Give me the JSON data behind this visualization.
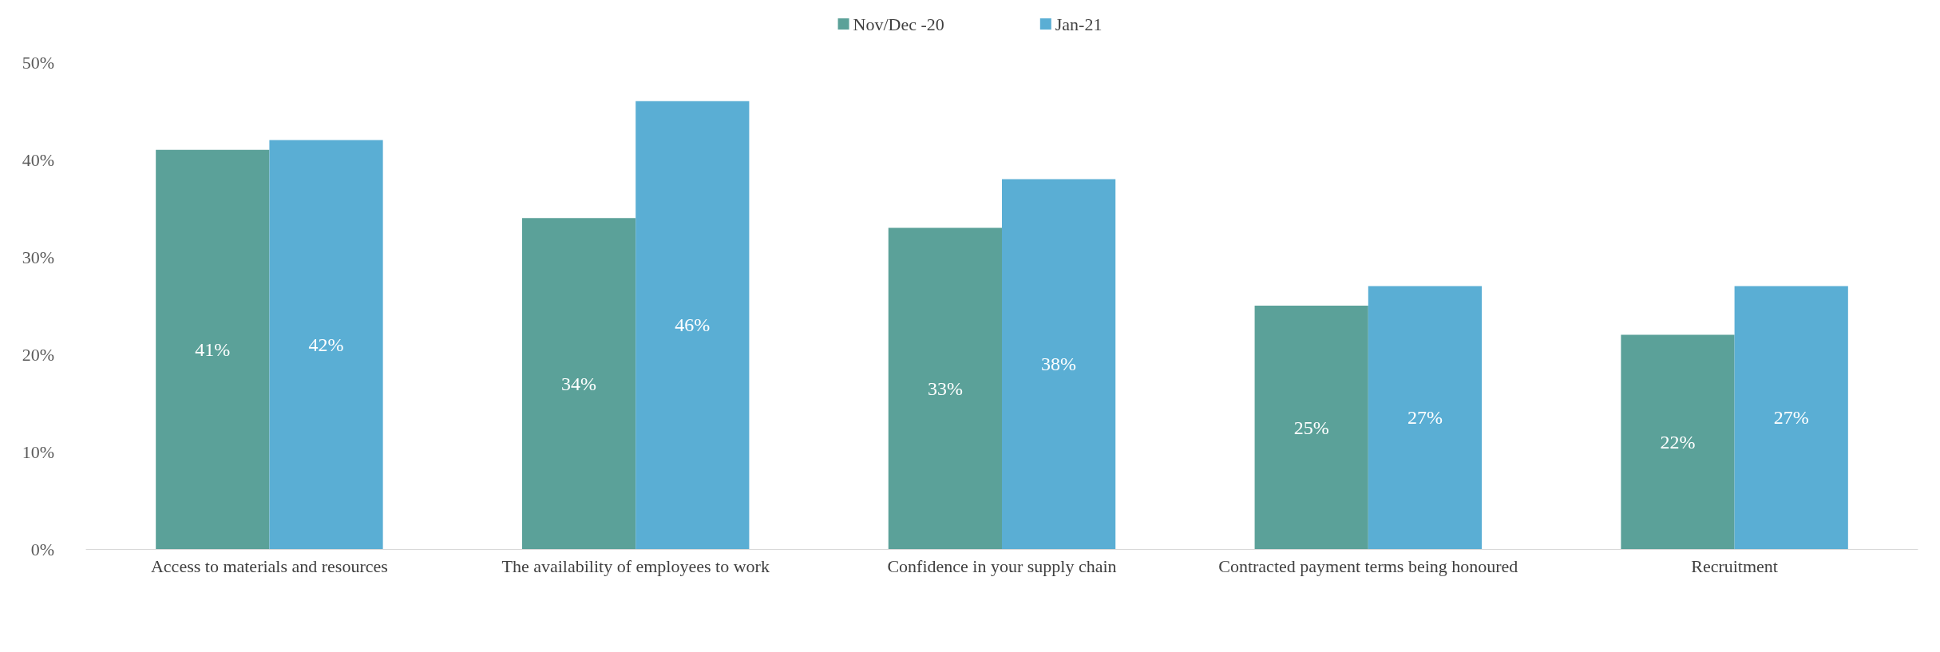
{
  "chart_data": {
    "type": "bar",
    "categories": [
      "Access to materials and resources",
      "The availability of employees to work",
      "Confidence in your supply chain",
      "Contracted payment terms being honoured",
      "Recruitment"
    ],
    "series": [
      {
        "name": "Nov/Dec -20",
        "color": "#5ba199",
        "values": [
          41,
          34,
          33,
          25,
          22
        ],
        "value_labels": [
          "41%",
          "34%",
          "33%",
          "25%",
          "22%"
        ]
      },
      {
        "name": "Jan-21",
        "color": "#5aaed4",
        "values": [
          42,
          46,
          38,
          27,
          27
        ],
        "value_labels": [
          "42%",
          "46%",
          "38%",
          "27%",
          "27%"
        ]
      }
    ],
    "ylim": [
      0,
      50
    ],
    "yticks": [
      {
        "value": 0,
        "label": "0%"
      },
      {
        "value": 10,
        "label": "10%"
      },
      {
        "value": 20,
        "label": "20%"
      },
      {
        "value": 30,
        "label": "30%"
      },
      {
        "value": 40,
        "label": "40%"
      },
      {
        "value": 50,
        "label": "50%"
      }
    ],
    "grid": false,
    "legend": "top"
  }
}
